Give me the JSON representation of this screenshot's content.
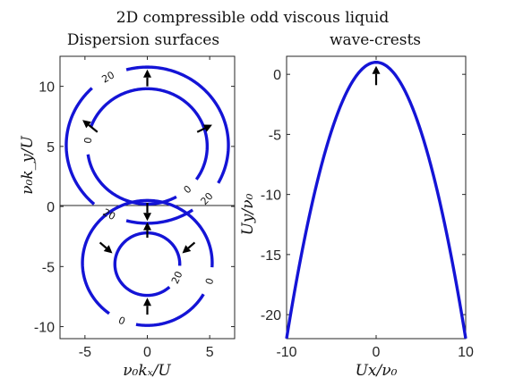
{
  "figure": {
    "suptitle": "2D compressible odd viscous liquid"
  },
  "chart_data": [
    {
      "type": "line",
      "title": "Dispersion surfaces",
      "xlabel": "ν₀kₓ/U",
      "ylabel": "ν₀k_y/U",
      "xlim": [
        -7,
        7
      ],
      "ylim": [
        -11,
        12.5
      ],
      "xticks": [
        "-5",
        "0",
        "5"
      ],
      "yticks": [
        "-10",
        "-5",
        "0",
        "5",
        "10"
      ],
      "reference_line_y": 0,
      "contours": [
        {
          "name": "20",
          "shape": "circle",
          "center": [
            0,
            5.1
          ],
          "radius": 6.5,
          "gaps_deg": [
            [
              106,
              132
            ],
            [
              -55,
              -30
            ],
            [
              -130,
              -106
            ]
          ],
          "labels": [
            {
              "text": "20",
              "angle_deg": 119
            },
            {
              "text": "20",
              "angle_deg": -43
            },
            {
              "text": "20",
              "angle_deg": -118
            }
          ]
        },
        {
          "name": "0",
          "shape": "circle",
          "center": [
            0,
            5.0
          ],
          "radius": 4.8,
          "gaps_deg": [
            [
              161,
              187
            ],
            [
              -60,
              -36
            ]
          ],
          "labels": [
            {
              "text": "0",
              "angle_deg": 174
            },
            {
              "text": "0",
              "angle_deg": -48
            }
          ]
        },
        {
          "name": "0",
          "shape": "circle",
          "center": [
            0,
            -4.7
          ],
          "radius": 5.2,
          "gaps_deg": [
            [
              -29,
              -5
            ],
            [
              -125,
              -101
            ]
          ],
          "labels": [
            {
              "text": "0",
              "angle_deg": -17
            },
            {
              "text": "0",
              "angle_deg": -113
            }
          ]
        },
        {
          "name": "20",
          "shape": "circle",
          "center": [
            0,
            -4.8
          ],
          "radius": 2.6,
          "gaps_deg": [
            [
              -46,
              -4
            ]
          ],
          "labels": [
            {
              "text": "20",
              "angle_deg": -25
            }
          ]
        }
      ],
      "arrows": [
        {
          "from": [
            0,
            10
          ],
          "to": [
            0,
            11.4
          ]
        },
        {
          "from": [
            -4,
            6.2
          ],
          "to": [
            -5.2,
            7.2
          ]
        },
        {
          "from": [
            4,
            6.2
          ],
          "to": [
            5.2,
            6.8
          ]
        },
        {
          "from": [
            0,
            0.3
          ],
          "to": [
            0,
            -1.2
          ]
        },
        {
          "from": [
            0,
            -2.6
          ],
          "to": [
            0,
            -1.3
          ]
        },
        {
          "from": [
            -3.8,
            -3.0
          ],
          "to": [
            -2.8,
            -3.9
          ]
        },
        {
          "from": [
            3.8,
            -3.0
          ],
          "to": [
            2.8,
            -3.9
          ]
        },
        {
          "from": [
            0,
            -9.0
          ],
          "to": [
            0,
            -7.6
          ]
        }
      ]
    },
    {
      "type": "line",
      "title": "wave-crests",
      "xlabel": "Ux/ν₀",
      "ylabel": "Uy/ν₀",
      "xlim": [
        -10,
        10
      ],
      "ylim": [
        -22,
        1.5
      ],
      "xticks": [
        "-10",
        "0",
        "10"
      ],
      "yticks": [
        "-20",
        "-15",
        "-10",
        "-5",
        "0"
      ],
      "series": [
        {
          "curve": "y = 1 - x^2/4.35",
          "x_range": [
            -10,
            10
          ]
        }
      ],
      "arrows": [
        {
          "from": [
            0,
            -0.9
          ],
          "to": [
            0,
            0.7
          ]
        }
      ]
    }
  ]
}
